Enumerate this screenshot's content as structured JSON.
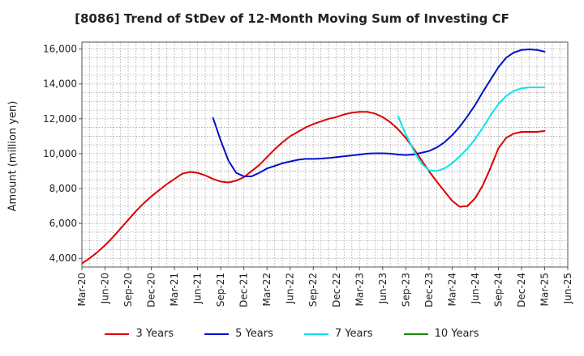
{
  "chart_data": {
    "type": "line",
    "title": "[8086]  Trend of StDev of 12-Month Moving Sum of Investing CF",
    "xlabel": "",
    "ylabel": "Amount (million yen)",
    "ylim": [
      3500,
      16400
    ],
    "yticks": [
      4000,
      6000,
      8000,
      10000,
      12000,
      14000,
      16000
    ],
    "ytick_labels": [
      "4,000",
      "6,000",
      "8,000",
      "10,000",
      "12,000",
      "14,000",
      "16,000"
    ],
    "xticks": [
      "2020-03",
      "2020-06",
      "2020-09",
      "2020-12",
      "2021-03",
      "2021-06",
      "2021-09",
      "2021-12",
      "2022-03",
      "2022-06",
      "2022-09",
      "2022-12",
      "2023-03",
      "2023-06",
      "2023-09",
      "2023-12",
      "2024-03",
      "2024-06",
      "2024-09",
      "2024-12",
      "2025-03",
      "2025-06"
    ],
    "xtick_labels": [
      "Mar-20",
      "Jun-20",
      "Sep-20",
      "Dec-20",
      "Mar-21",
      "Jun-21",
      "Sep-21",
      "Dec-21",
      "Mar-22",
      "Jun-22",
      "Sep-22",
      "Dec-22",
      "Mar-23",
      "Jun-23",
      "Sep-23",
      "Dec-23",
      "Mar-24",
      "Jun-24",
      "Sep-24",
      "Dec-24",
      "Mar-25",
      "Jun-25"
    ],
    "grid": true,
    "legend_position": "bottom",
    "series": [
      {
        "name": "3 Years",
        "color": "#dd0000",
        "points": [
          [
            "2020-03",
            3700
          ],
          [
            "2020-04",
            4000
          ],
          [
            "2020-05",
            4350
          ],
          [
            "2020-06",
            4750
          ],
          [
            "2020-07",
            5200
          ],
          [
            "2020-08",
            5700
          ],
          [
            "2020-09",
            6200
          ],
          [
            "2020-10",
            6700
          ],
          [
            "2020-11",
            7150
          ],
          [
            "2020-12",
            7550
          ],
          [
            "2021-01",
            7900
          ],
          [
            "2021-02",
            8250
          ],
          [
            "2021-03",
            8550
          ],
          [
            "2021-04",
            8850
          ],
          [
            "2021-05",
            8950
          ],
          [
            "2021-06",
            8900
          ],
          [
            "2021-07",
            8750
          ],
          [
            "2021-08",
            8550
          ],
          [
            "2021-09",
            8400
          ],
          [
            "2021-10",
            8350
          ],
          [
            "2021-11",
            8450
          ],
          [
            "2021-12",
            8650
          ],
          [
            "2022-01",
            9000
          ],
          [
            "2022-02",
            9350
          ],
          [
            "2022-03",
            9800
          ],
          [
            "2022-04",
            10250
          ],
          [
            "2022-05",
            10650
          ],
          [
            "2022-06",
            11000
          ],
          [
            "2022-07",
            11250
          ],
          [
            "2022-08",
            11500
          ],
          [
            "2022-09",
            11700
          ],
          [
            "2022-10",
            11850
          ],
          [
            "2022-11",
            12000
          ],
          [
            "2022-12",
            12100
          ],
          [
            "2023-01",
            12250
          ],
          [
            "2023-02",
            12350
          ],
          [
            "2023-03",
            12400
          ],
          [
            "2023-04",
            12400
          ],
          [
            "2023-05",
            12300
          ],
          [
            "2023-06",
            12100
          ],
          [
            "2023-07",
            11800
          ],
          [
            "2023-08",
            11400
          ],
          [
            "2023-09",
            10900
          ],
          [
            "2023-10",
            10300
          ],
          [
            "2023-11",
            9650
          ],
          [
            "2023-12",
            9000
          ],
          [
            "2024-01",
            8400
          ],
          [
            "2024-02",
            7850
          ],
          [
            "2024-03",
            7300
          ],
          [
            "2024-04",
            6950
          ],
          [
            "2024-05",
            7000
          ],
          [
            "2024-06",
            7450
          ],
          [
            "2024-07",
            8200
          ],
          [
            "2024-08",
            9200
          ],
          [
            "2024-09",
            10300
          ],
          [
            "2024-10",
            10900
          ],
          [
            "2024-11",
            11150
          ],
          [
            "2024-12",
            11250
          ],
          [
            "2025-01",
            11250
          ],
          [
            "2025-02",
            11250
          ],
          [
            "2025-03",
            11300
          ]
        ]
      },
      {
        "name": "5 Years",
        "color": "#0010cc",
        "points": [
          [
            "2021-08",
            12050
          ],
          [
            "2021-09",
            10750
          ],
          [
            "2021-10",
            9600
          ],
          [
            "2021-11",
            8900
          ],
          [
            "2021-12",
            8700
          ],
          [
            "2022-01",
            8700
          ],
          [
            "2022-02",
            8900
          ],
          [
            "2022-03",
            9150
          ],
          [
            "2022-04",
            9300
          ],
          [
            "2022-05",
            9450
          ],
          [
            "2022-06",
            9550
          ],
          [
            "2022-07",
            9650
          ],
          [
            "2022-08",
            9700
          ],
          [
            "2022-09",
            9700
          ],
          [
            "2022-10",
            9720
          ],
          [
            "2022-11",
            9750
          ],
          [
            "2022-12",
            9800
          ],
          [
            "2023-01",
            9850
          ],
          [
            "2023-02",
            9900
          ],
          [
            "2023-03",
            9950
          ],
          [
            "2023-04",
            10000
          ],
          [
            "2023-05",
            10020
          ],
          [
            "2023-06",
            10020
          ],
          [
            "2023-07",
            10000
          ],
          [
            "2023-08",
            9950
          ],
          [
            "2023-09",
            9920
          ],
          [
            "2023-10",
            9950
          ],
          [
            "2023-11",
            10050
          ],
          [
            "2023-12",
            10150
          ],
          [
            "2024-01",
            10350
          ],
          [
            "2024-02",
            10650
          ],
          [
            "2024-03",
            11050
          ],
          [
            "2024-04",
            11550
          ],
          [
            "2024-05",
            12150
          ],
          [
            "2024-06",
            12800
          ],
          [
            "2024-07",
            13550
          ],
          [
            "2024-08",
            14250
          ],
          [
            "2024-09",
            14950
          ],
          [
            "2024-10",
            15500
          ],
          [
            "2024-11",
            15800
          ],
          [
            "2024-12",
            15950
          ],
          [
            "2025-01",
            15980
          ],
          [
            "2025-02",
            15950
          ],
          [
            "2025-03",
            15850
          ]
        ]
      },
      {
        "name": "7 Years",
        "color": "#00e5ee",
        "points": [
          [
            "2023-08",
            12150
          ],
          [
            "2023-09",
            11100
          ],
          [
            "2023-10",
            10200
          ],
          [
            "2023-11",
            9450
          ],
          [
            "2023-12",
            9050
          ],
          [
            "2024-01",
            9000
          ],
          [
            "2024-02",
            9150
          ],
          [
            "2024-03",
            9450
          ],
          [
            "2024-04",
            9850
          ],
          [
            "2024-05",
            10300
          ],
          [
            "2024-06",
            10850
          ],
          [
            "2024-07",
            11500
          ],
          [
            "2024-08",
            12200
          ],
          [
            "2024-09",
            12850
          ],
          [
            "2024-10",
            13300
          ],
          [
            "2024-11",
            13600
          ],
          [
            "2024-12",
            13750
          ],
          [
            "2025-01",
            13800
          ],
          [
            "2025-02",
            13800
          ],
          [
            "2025-03",
            13800
          ]
        ]
      },
      {
        "name": "10 Years",
        "color": "#118811",
        "points": []
      }
    ]
  }
}
